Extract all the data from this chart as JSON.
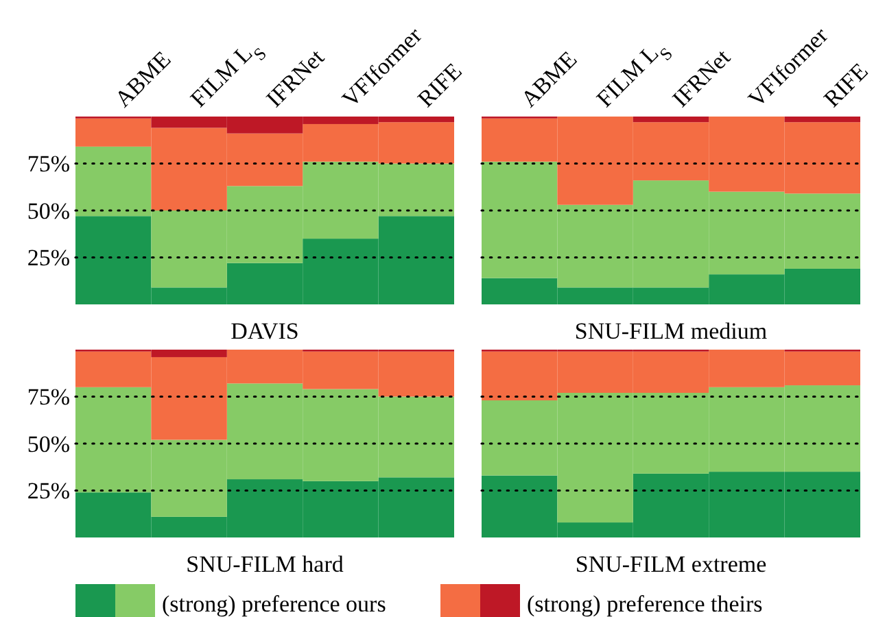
{
  "chart_data": [
    {
      "type": "bar",
      "stacked": true,
      "title": "DAVIS",
      "categories": [
        "ABME",
        "FILM L$_{S}$",
        "IFRNet",
        "VFIformer",
        "RIFE"
      ],
      "series": [
        {
          "color": "#1a9850",
          "values": [
            47,
            9,
            22,
            35,
            47
          ]
        },
        {
          "color": "#86cb66",
          "values": [
            37,
            41,
            41,
            41,
            28
          ]
        },
        {
          "color": "#f46d43",
          "values": [
            15,
            44,
            28,
            20,
            22
          ]
        },
        {
          "color": "#be1826",
          "values": [
            1,
            6,
            9,
            4,
            3
          ]
        }
      ],
      "ylim": [
        0,
        100
      ],
      "yticks": [
        {
          "value": 25,
          "label": "25%"
        },
        {
          "value": 50,
          "label": "50%"
        },
        {
          "value": 75,
          "label": "75%"
        }
      ],
      "grid": "y",
      "line_style": "dotted"
    },
    {
      "type": "bar",
      "stacked": true,
      "title": "SNU-FILM medium",
      "categories": [
        "ABME",
        "FILM L$_{S}$",
        "IFRNet",
        "VFIformer",
        "RIFE"
      ],
      "series": [
        {
          "color": "#1a9850",
          "values": [
            14,
            9,
            9,
            16,
            19
          ]
        },
        {
          "color": "#86cb66",
          "values": [
            62,
            44,
            57,
            44,
            40
          ]
        },
        {
          "color": "#f46d43",
          "values": [
            23,
            47,
            31,
            40,
            38
          ]
        },
        {
          "color": "#be1826",
          "values": [
            1,
            0,
            3,
            0,
            3
          ]
        }
      ],
      "ylim": [
        0,
        100
      ],
      "yticks": [
        25,
        50,
        75
      ],
      "grid": "y",
      "line_style": "dotted",
      "tick_labels": "x"
    },
    {
      "type": "bar",
      "stacked": true,
      "title": "SNU-FILM hard",
      "categories": [
        null,
        null,
        null,
        null,
        null
      ],
      "series": [
        {
          "name": "(strong) preference ours",
          "color": "#1a9850",
          "values": [
            24,
            11,
            31,
            30,
            32
          ]
        },
        {
          "color": "#86cb66",
          "values": [
            56,
            41,
            51,
            49,
            43
          ]
        },
        {
          "color": "#f46d43",
          "values": [
            19,
            44,
            18,
            20,
            24
          ]
        },
        {
          "color": "#be1826",
          "values": [
            1,
            4,
            0,
            1,
            1
          ]
        }
      ],
      "ylim": [
        0,
        100
      ],
      "yticks": [
        {
          "value": 25,
          "label": "25%"
        },
        {
          "value": 50,
          "label": "50%"
        },
        {
          "value": 75,
          "label": "75%"
        }
      ],
      "grid": "y",
      "line_style": "dotted",
      "tick_labels": "y",
      "legend": "bottom"
    },
    {
      "type": "bar",
      "stacked": true,
      "title": "SNU-FILM extreme",
      "categories": [
        null,
        null,
        null,
        null,
        null
      ],
      "series": [
        {
          "color": "#1a9850",
          "values": [
            33,
            8,
            34,
            35,
            35
          ]
        },
        {
          "color": "#86cb66",
          "values": [
            40,
            69,
            43,
            45,
            46
          ]
        },
        {
          "color": "#f46d43",
          "values": [
            26,
            22,
            22,
            20,
            18
          ]
        },
        {
          "name": "(strong) preference theirs",
          "color": "#be1826",
          "values": [
            1,
            1,
            1,
            0,
            1
          ]
        }
      ],
      "ylim": [
        0,
        100
      ],
      "yticks": [
        25,
        50,
        75
      ],
      "grid": "y",
      "line_style": "dotted",
      "tick_labels": false,
      "legend": "bottom"
    }
  ]
}
